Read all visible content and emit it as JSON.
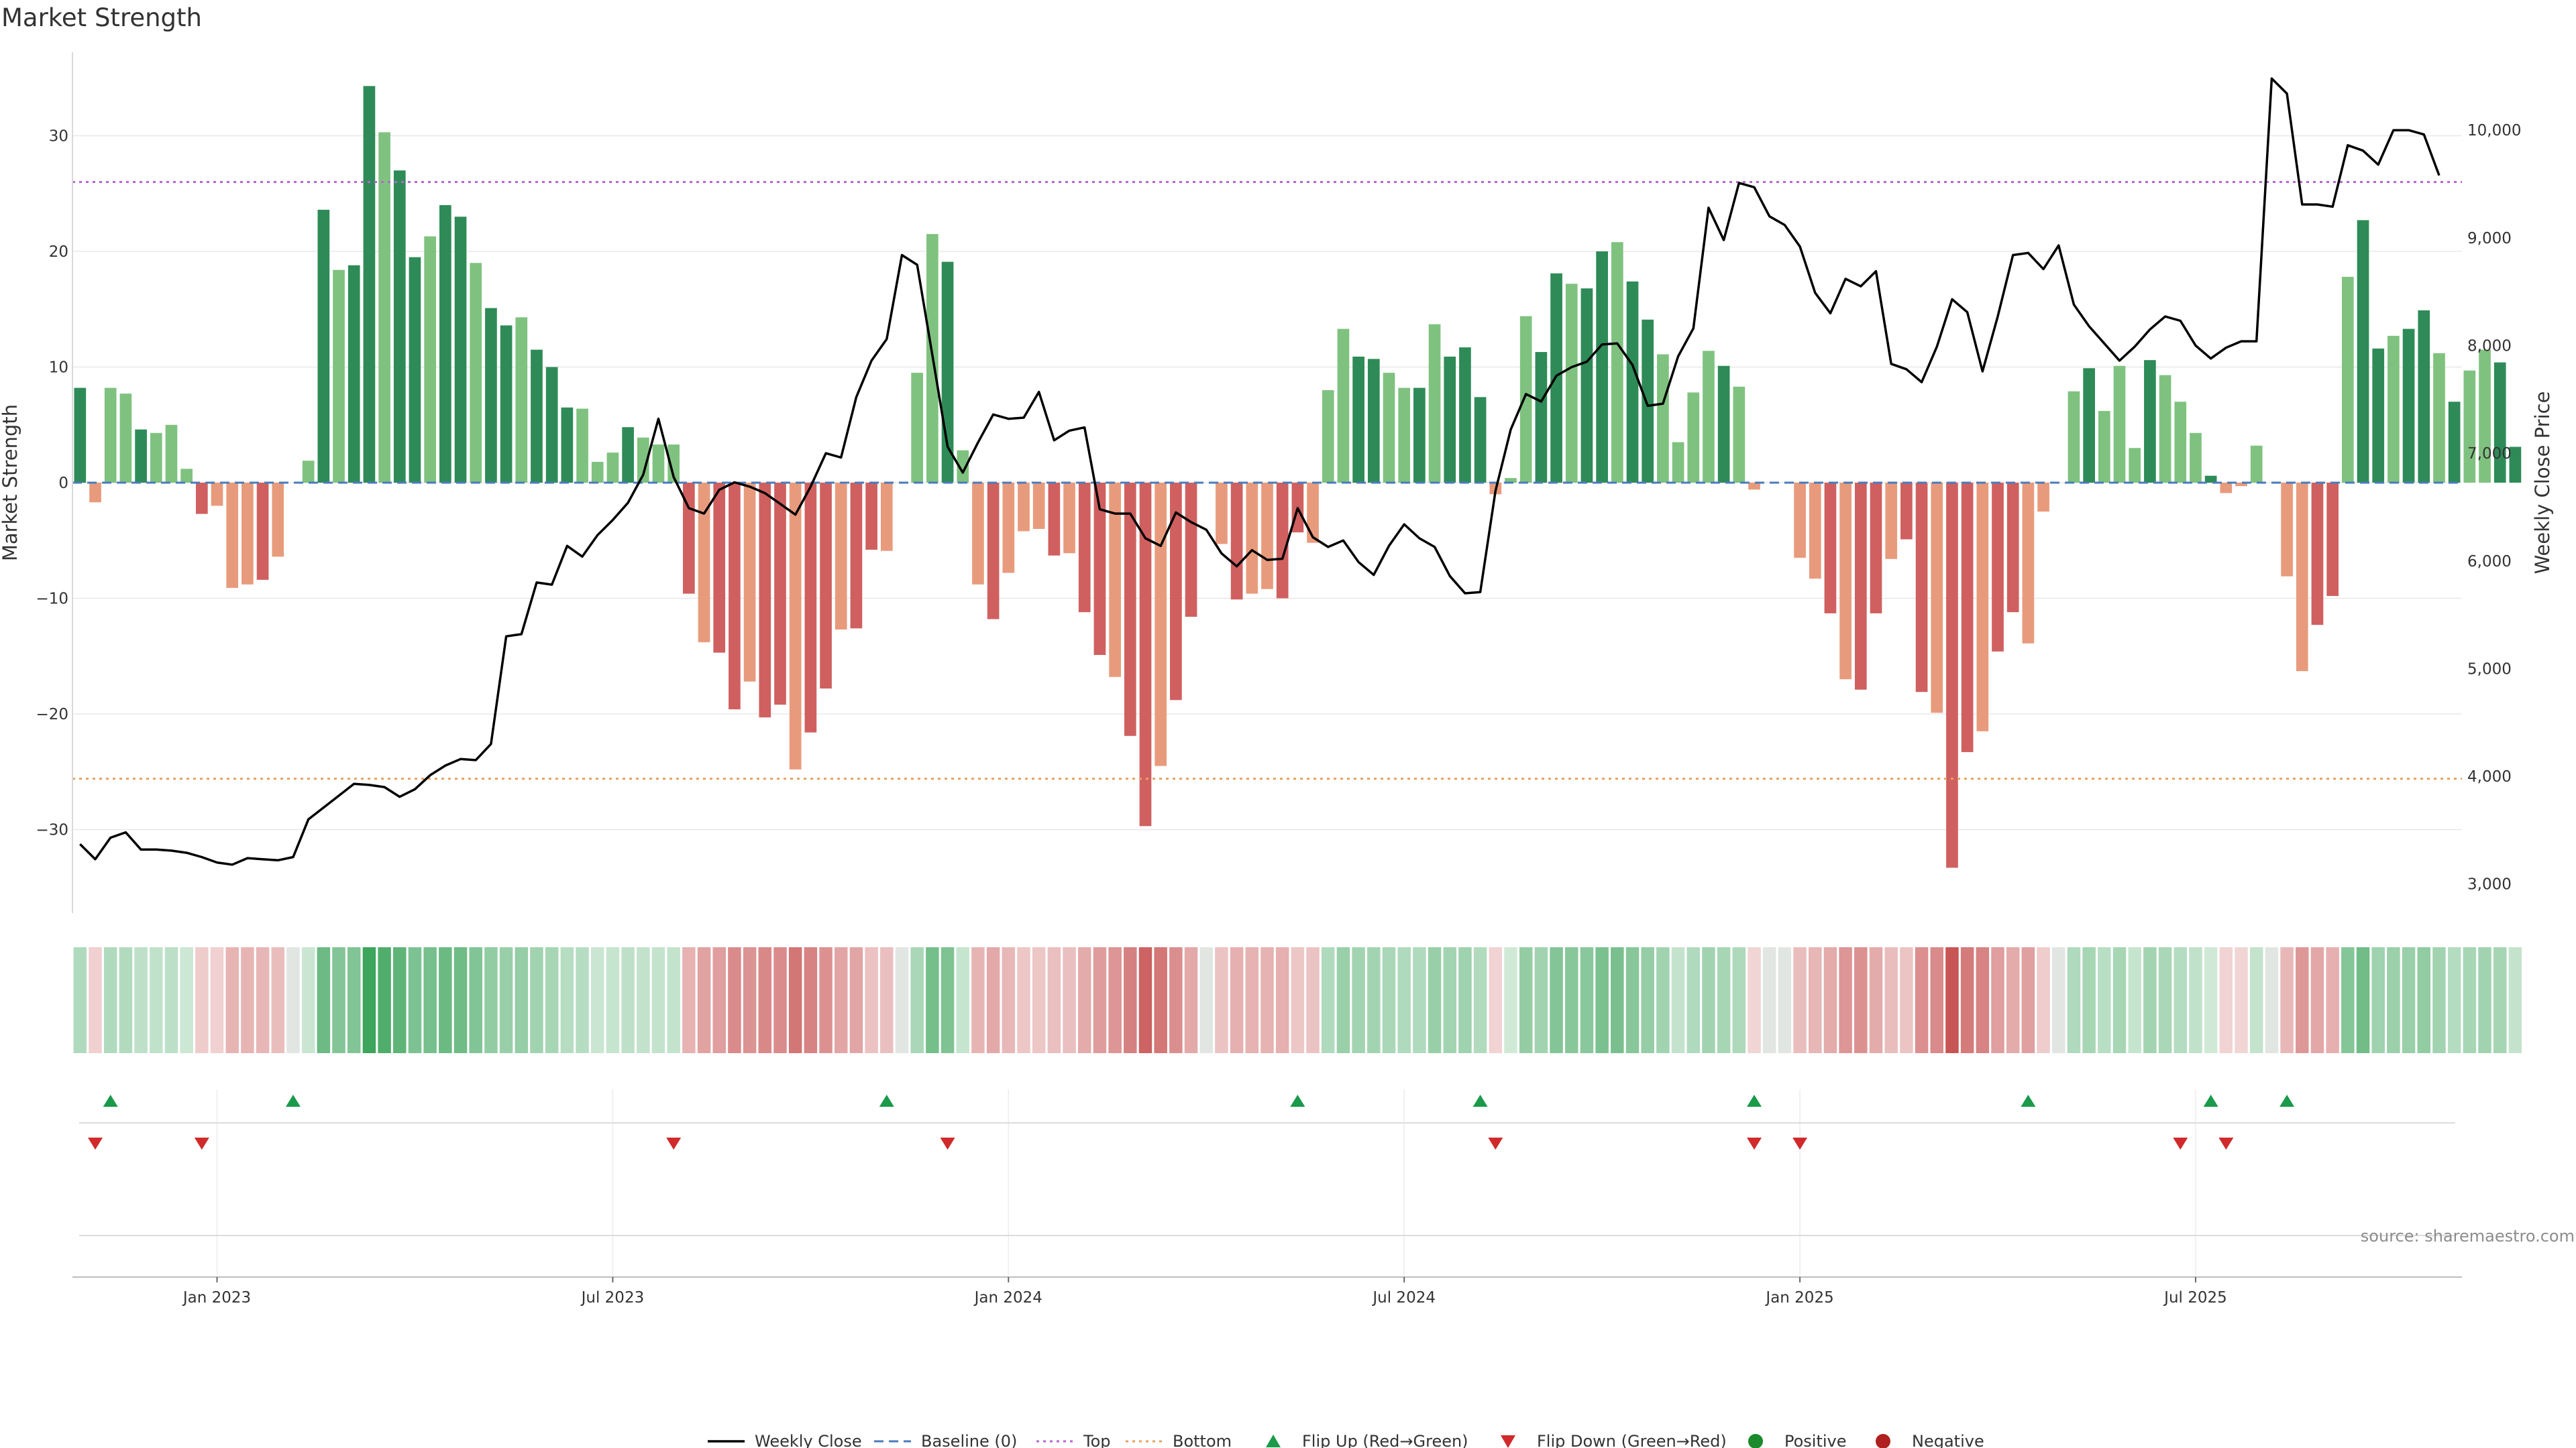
{
  "chart_data": {
    "type": "bar",
    "title": "Market Strength",
    "ylabel": "Market Strength",
    "y2label": "Weekly Close Price",
    "ylim": [
      -37.5,
      37
    ],
    "y2lim": [
      2700,
      10700
    ],
    "yticks": [
      -30,
      -20,
      -10,
      0,
      10,
      20,
      30
    ],
    "y2ticks": [
      3000,
      4000,
      5000,
      6000,
      7000,
      8000,
      9000,
      10000
    ],
    "y2tick_labels": [
      "3,000",
      "4,000",
      "5,000",
      "6,000",
      "7,000",
      "8,000",
      "9,000",
      "10,000"
    ],
    "xtick_labels": [
      "Jan 2023",
      "Jul 2023",
      "Jan 2024",
      "Jul 2024",
      "Jan 2025",
      "Jul 2025"
    ],
    "xtick_positions": [
      9,
      35,
      61,
      87,
      113,
      139
    ],
    "x_range": [
      -0.5,
      156.5
    ],
    "top_level": 26,
    "bottom_level": -25.6,
    "strength": [
      8.2,
      -1.7,
      8.2,
      7.7,
      4.6,
      4.3,
      5.0,
      1.2,
      -2.7,
      -2.0,
      -9.1,
      -8.8,
      -8.4,
      -6.4,
      0,
      1.9,
      23.6,
      18.4,
      18.8,
      34.3,
      30.3,
      27.0,
      19.5,
      21.3,
      24.0,
      23.0,
      19.0,
      15.1,
      13.6,
      14.3,
      11.5,
      10.0,
      6.5,
      6.4,
      1.8,
      2.6,
      4.8,
      3.9,
      3.3,
      3.3,
      -9.6,
      -13.8,
      -14.7,
      -19.6,
      -17.2,
      -20.3,
      -19.2,
      -24.8,
      -21.6,
      -17.8,
      -12.7,
      -12.6,
      -5.8,
      -5.9,
      0,
      9.5,
      21.5,
      19.1,
      2.8,
      -8.8,
      -11.8,
      -7.8,
      -4.2,
      -4.0,
      -6.3,
      -6.1,
      -11.2,
      -14.9,
      -16.8,
      -21.9,
      -29.7,
      -24.5,
      -18.8,
      -11.6,
      0,
      -5.3,
      -10.1,
      -9.6,
      -9.2,
      -10.0,
      -4.3,
      -5.2,
      8.0,
      13.3,
      10.9,
      10.7,
      9.5,
      8.2,
      8.2,
      13.7,
      10.9,
      11.7,
      7.4,
      -1.0,
      0.4,
      14.4,
      11.3,
      18.1,
      17.2,
      16.8,
      20.0,
      20.8,
      17.4,
      14.1,
      11.1,
      3.5,
      7.8,
      11.4,
      10.1,
      8.3,
      -0.6,
      0,
      0,
      -6.5,
      -8.3,
      -11.3,
      -17.0,
      -17.9,
      -11.3,
      -6.6,
      -4.9,
      -18.1,
      -19.9,
      -33.3,
      -23.3,
      -21.5,
      -14.6,
      -11.2,
      -13.9,
      -2.5,
      0,
      7.9,
      9.9,
      6.2,
      10.1,
      3.0,
      10.6,
      9.3,
      7.0,
      4.3,
      0.6,
      -0.9,
      -0.3,
      3.2,
      0,
      -8.1,
      -16.3,
      -12.3,
      -9.8,
      17.8,
      22.7,
      11.6,
      12.7,
      13.3,
      14.9,
      11.2,
      7.0,
      9.7,
      11.5,
      10.4,
      3.1
    ],
    "weekly_close": [
      3370,
      3230,
      3430,
      3480,
      3320,
      3320,
      3310,
      3290,
      3250,
      3200,
      3180,
      3240,
      3230,
      3220,
      3250,
      3600,
      3710,
      3820,
      3930,
      3920,
      3900,
      3810,
      3880,
      4010,
      4100,
      4160,
      4150,
      4300,
      5300,
      5320,
      5800,
      5780,
      6140,
      6040,
      6240,
      6380,
      6540,
      6800,
      7320,
      6780,
      6490,
      6440,
      6660,
      6730,
      6690,
      6630,
      6530,
      6430,
      6690,
      7000,
      6960,
      7520,
      7860,
      8060,
      8840,
      8750,
      7910,
      7060,
      6820,
      7100,
      7360,
      7320,
      7330,
      7570,
      7120,
      7210,
      7240,
      6480,
      6440,
      6440,
      6210,
      6140,
      6450,
      6360,
      6290,
      6070,
      5950,
      6100,
      6010,
      6020,
      6490,
      6220,
      6130,
      6190,
      5990,
      5870,
      6140,
      6340,
      6210,
      6130,
      5860,
      5700,
      5710,
      6650,
      7220,
      7550,
      7480,
      7720,
      7800,
      7850,
      8010,
      8020,
      7820,
      7440,
      7460,
      7900,
      8160,
      9280,
      8980,
      9510,
      9470,
      9200,
      9120,
      8920,
      8490,
      8300,
      8620,
      8550,
      8690,
      7830,
      7780,
      7660,
      7990,
      8430,
      8310,
      7760,
      8270,
      8840,
      8860,
      8710,
      8930,
      8380,
      8180,
      8020,
      7860,
      7990,
      8150,
      8270,
      8230,
      8000,
      7880,
      7980,
      8040,
      8040,
      10480,
      10340,
      9310,
      9310,
      9290,
      9860,
      9810,
      9680,
      10000,
      10000,
      9960,
      9580
    ],
    "flips_up": [
      2,
      14,
      53,
      80,
      92,
      110,
      128,
      140,
      145
    ],
    "flips_down": [
      1,
      8,
      39,
      57,
      93,
      110,
      113,
      138,
      141
    ],
    "heatmap_intensity": "per-week market strength shown as a green (positive) / red (negative) color strip",
    "colors": {
      "strong_green": "#2e8b57",
      "light_green": "#7fc27f",
      "strong_red": "#d06060",
      "light_red": "#e89b7c",
      "price_line": "#000000",
      "baseline": "#4a7bbd",
      "top": "#b666d2",
      "bottom": "#e8a060",
      "flip_up": "#1a9a4a",
      "flip_down": "#d02a2a",
      "positive": "#1a8a2a",
      "negative": "#b02020",
      "grid": "#e8e8e8"
    },
    "legend": [
      {
        "key": "weekly-close",
        "label": "Weekly Close",
        "style": "line",
        "color": "#000000"
      },
      {
        "key": "baseline",
        "label": "Baseline (0)",
        "style": "dash",
        "color": "#4a7bbd"
      },
      {
        "key": "top",
        "label": "Top",
        "style": "dot",
        "color": "#b666d2"
      },
      {
        "key": "bottom",
        "label": "Bottom",
        "style": "dot",
        "color": "#e8a060"
      },
      {
        "key": "flip-up",
        "label": "Flip Up (Red→Green)",
        "style": "tri-up",
        "color": "#1a9a4a"
      },
      {
        "key": "flip-down",
        "label": "Flip Down (Green→Red)",
        "style": "tri-down",
        "color": "#d02a2a"
      },
      {
        "key": "positive",
        "label": "Positive",
        "style": "circle",
        "color": "#1a8a2a"
      },
      {
        "key": "negative",
        "label": "Negative",
        "style": "circle",
        "color": "#b02020"
      }
    ],
    "legend_position": "bottom-center",
    "grid": true,
    "source": "source: sharemaestro.com"
  }
}
